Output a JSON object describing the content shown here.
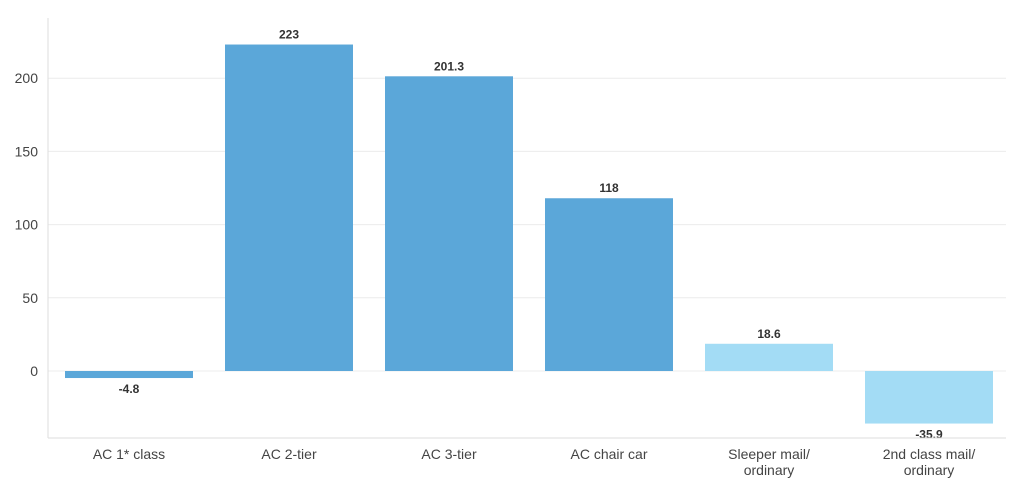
{
  "chart_data": {
    "type": "bar",
    "categories": [
      "AC 1* class",
      "AC 2-tier",
      "AC 3-tier",
      "AC chair car",
      "Sleeper mail/ ordinary",
      "2nd class mail/ ordinary"
    ],
    "values": [
      -4.8,
      223,
      201.3,
      118,
      18.6,
      -35.9
    ],
    "value_labels": [
      "-4.8",
      "223",
      "201.3",
      "118",
      "18.6",
      "-35.9"
    ],
    "category_lines": [
      [
        "AC 1* class"
      ],
      [
        "AC 2-tier"
      ],
      [
        "AC 3-tier"
      ],
      [
        "AC chair car"
      ],
      [
        "Sleeper mail/",
        "ordinary"
      ],
      [
        "2nd class mail/",
        "ordinary"
      ]
    ],
    "bar_colors": [
      "#5ba7d9",
      "#5ba7d9",
      "#5ba7d9",
      "#5ba7d9",
      "#a3dcf5",
      "#a3dcf5"
    ],
    "yticks": [
      0,
      50,
      100,
      150,
      200
    ],
    "ylim": [
      -46,
      240
    ],
    "grid": true,
    "title": "",
    "xlabel": "",
    "ylabel": ""
  }
}
